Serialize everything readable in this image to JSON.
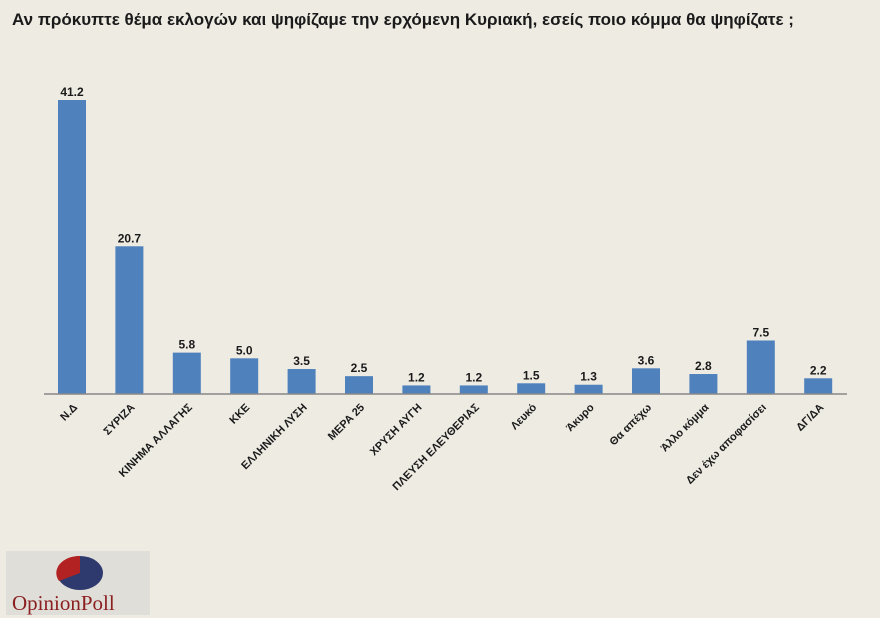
{
  "chart_data": {
    "type": "bar",
    "title": "Αν πρόκυπτε θέμα εκλογών και ψηφίζαμε την ερχόμενη Κυριακή, εσείς ποιο κόμμα θα ψηφίζατε ;",
    "categories": [
      "Ν.Δ",
      "ΣΥΡΙΖΑ",
      "ΚΙΝΗΜΑ ΑΛΛΑΓΗΣ",
      "ΚΚΕ",
      "ΕΛΛΗΝΙΚΗ ΛΥΣΗ",
      "ΜΕΡΑ 25",
      "ΧΡΥΣΗ ΑΥΓΗ",
      "ΠΛΕΥΣΗ ΕΛΕΥΘΕΡΙΑΣ",
      "Λευκό",
      "Άκυρο",
      "Θα απέχω",
      "Άλλο κόμμα",
      "Δεν έχω αποφασίσει",
      "ΔΓ/ΔΑ"
    ],
    "values": [
      41.2,
      20.7,
      5.8,
      5.0,
      3.5,
      2.5,
      1.2,
      1.2,
      1.5,
      1.3,
      3.6,
      2.8,
      7.5,
      2.2
    ],
    "value_labels": [
      "41.2",
      "20.7",
      "5.8",
      "5.0",
      "3.5",
      "2.5",
      "1.2",
      "1.2",
      "1.5",
      "1.3",
      "3.6",
      "2.8",
      "7.5",
      "2.2"
    ],
    "ylim": [
      0,
      42
    ],
    "grid": false,
    "bar_color": "#4f81bd"
  },
  "logo": {
    "text": "OpinionPoll",
    "colors": [
      "#b22222",
      "#2e3a6e"
    ]
  }
}
